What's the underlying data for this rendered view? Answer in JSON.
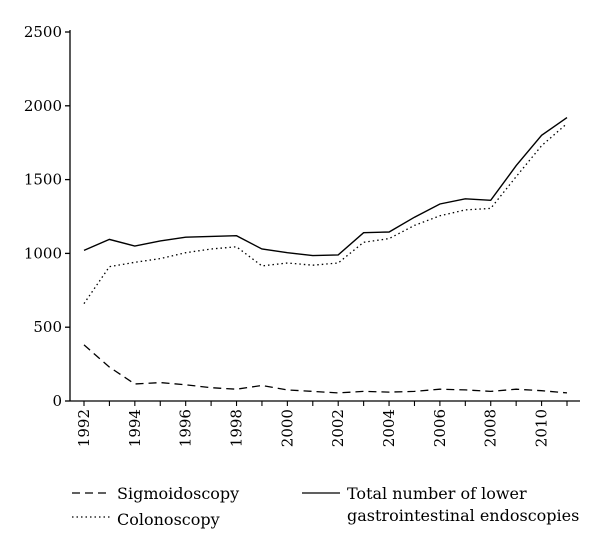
{
  "chart_data": {
    "type": "line",
    "title": "",
    "xlabel": "",
    "ylabel": "",
    "ylim": [
      0,
      2500
    ],
    "xlim": [
      1992,
      2011
    ],
    "yticks": [
      0,
      500,
      1000,
      1500,
      2000,
      2500
    ],
    "xtick_labels": [
      "1992",
      "1994",
      "1996",
      "1998",
      "2000",
      "2002",
      "2004",
      "2006",
      "2008",
      "2010"
    ],
    "grid": false,
    "legend_position": "bottom",
    "x": [
      1992,
      1993,
      1994,
      1995,
      1996,
      1997,
      1998,
      1999,
      2000,
      2001,
      2002,
      2003,
      2004,
      2005,
      2006,
      2007,
      2008,
      2009,
      2010,
      2011
    ],
    "series": [
      {
        "name": "Sigmoidoscopy",
        "style": "dashed",
        "values": [
          380,
          230,
          115,
          125,
          110,
          90,
          80,
          105,
          75,
          65,
          55,
          65,
          60,
          65,
          80,
          75,
          65,
          80,
          70,
          55
        ]
      },
      {
        "name": "Colonoscopy",
        "style": "dotted",
        "values": [
          660,
          910,
          940,
          965,
          1005,
          1030,
          1045,
          915,
          935,
          920,
          935,
          1075,
          1100,
          1190,
          1255,
          1295,
          1305,
          1520,
          1730,
          1880
        ]
      },
      {
        "name": "Total number of lower gastrointestinal endoscopies",
        "label_lines": [
          "Total number of lower",
          "gastrointestinal endoscopies"
        ],
        "style": "solid",
        "values": [
          1020,
          1095,
          1050,
          1085,
          1110,
          1115,
          1120,
          1030,
          1005,
          985,
          990,
          1140,
          1145,
          1245,
          1335,
          1370,
          1360,
          1595,
          1800,
          1920
        ]
      }
    ]
  }
}
